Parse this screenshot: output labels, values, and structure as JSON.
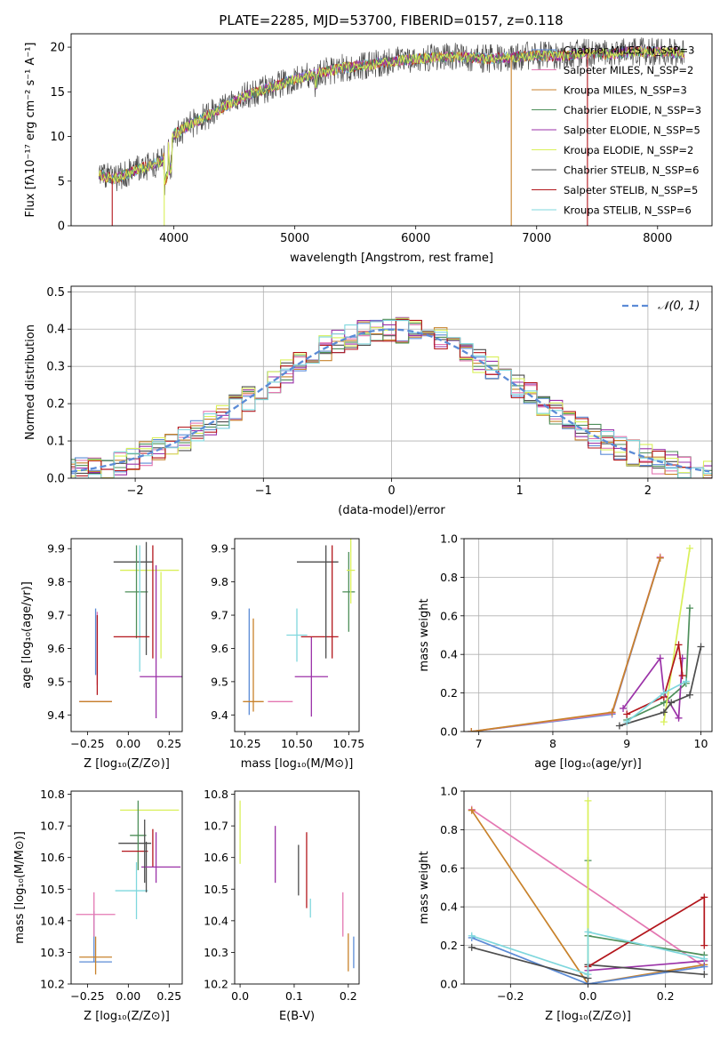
{
  "colors": {
    "grid": "#b0b0b0",
    "axis": "#000000",
    "gauss": "#5b8bd6"
  },
  "series_styles": [
    {
      "name": "Chabrier MILES",
      "nssp": "3",
      "color": "#5b8bd6"
    },
    {
      "name": "Salpeter MILES",
      "nssp": "2",
      "color": "#e477b2"
    },
    {
      "name": "Kroupa MILES",
      "nssp": "3",
      "color": "#c8822b"
    },
    {
      "name": "Chabrier ELODIE",
      "nssp": "3",
      "color": "#4e8f5a"
    },
    {
      "name": "Salpeter ELODIE",
      "nssp": "5",
      "color": "#9b32a8"
    },
    {
      "name": "Kroupa ELODIE",
      "nssp": "2",
      "color": "#d9f05a"
    },
    {
      "name": "Chabrier STELIB",
      "nssp": "6",
      "color": "#4d4d4d"
    },
    {
      "name": "Salpeter STELIB",
      "nssp": "5",
      "color": "#b3161c"
    },
    {
      "name": "Kroupa STELIB",
      "nssp": "6",
      "color": "#7fd7dd"
    }
  ],
  "chart_data": [
    {
      "id": "spectrum",
      "type": "line",
      "title": "PLATE=2285, MJD=53700, FIBERID=0157, z=0.118",
      "xlabel": "wavelength [Angstrom, rest frame]",
      "ylabel": "Flux [fλ10⁻¹⁷ erg cm⁻² s⁻¹ A⁻¹]",
      "xlim": [
        3150,
        8450
      ],
      "ylim": [
        0,
        21.5
      ],
      "xticks": [
        4000,
        5000,
        6000,
        7000,
        8000
      ],
      "yticks": [
        0,
        5,
        10,
        15,
        20
      ],
      "grid": false,
      "legend": "right",
      "legend_entries": [
        "Chabrier MILES, N_SSP=3",
        "Salpeter MILES, N_SSP=2",
        "Kroupa MILES, N_SSP=3",
        "Chabrier ELODIE, N_SSP=3",
        "Salpeter ELODIE, N_SSP=5",
        "Kroupa ELODIE, N_SSP=2",
        "Chabrier STELIB, N_SSP=6",
        "Salpeter STELIB, N_SSP=5",
        "Kroupa STELIB, N_SSP=6"
      ],
      "continuum": {
        "x": [
          3380,
          3500,
          3700,
          3900,
          4000,
          4200,
          4400,
          4600,
          4800,
          5000,
          5200,
          5400,
          5600,
          5800,
          6000,
          6200,
          6400,
          6600,
          6800,
          7000,
          7200,
          7400,
          7600,
          7800,
          8000,
          8220
        ],
        "y": [
          5.8,
          5.2,
          6.3,
          7.2,
          10.2,
          11.8,
          13.2,
          14.6,
          15.5,
          16.4,
          17.1,
          17.7,
          18.0,
          18.4,
          18.7,
          18.9,
          18.9,
          18.7,
          18.9,
          19.1,
          19.0,
          19.4,
          19.2,
          19.5,
          19.5,
          19.3
        ]
      }
    },
    {
      "id": "residuals",
      "type": "line",
      "xlabel": "(data-model)/error",
      "ylabel": "Normed distribution",
      "xlim": [
        -2.5,
        2.5
      ],
      "ylim": [
        0,
        0.515
      ],
      "xticks": [
        -2,
        -1,
        0,
        1,
        2
      ],
      "xtick_labels": [
        "−2",
        "−1",
        "0",
        "1",
        "2"
      ],
      "yticks": [
        0.0,
        0.1,
        0.2,
        0.3,
        0.4,
        0.5
      ],
      "grid": true,
      "legend": "top-right",
      "legend_label": "𝒩(0, 1)"
    },
    {
      "id": "age_vs_Z",
      "type": "scatter",
      "xlabel": "Z [log₁₀(Z/Z⊙)]",
      "ylabel": "age  [log₁₀(age/yr)]",
      "xlim": [
        -0.35,
        0.33
      ],
      "ylim": [
        9.35,
        9.93
      ],
      "xticks": [
        -0.25,
        0.0,
        0.25
      ],
      "xtick_labels": [
        "−0.25",
        "0.00",
        "0.25"
      ],
      "yticks": [
        9.4,
        9.5,
        9.6,
        9.7,
        9.8,
        9.9
      ],
      "grid": false,
      "points": [
        {
          "s": 0,
          "x": -0.2,
          "y": 9.44,
          "xerr": 0.1,
          "yerr": 0.0
        },
        {
          "s": 1,
          "x": -0.2,
          "y": 9.44,
          "xerr": 0.1,
          "yerr": 0.0
        },
        {
          "s": 2,
          "x": -0.2,
          "y": 9.44,
          "xerr": 0.1,
          "yerr": 0.0
        },
        {
          "s": 0,
          "x": -0.2,
          "y": 9.62,
          "xerr": 0.0,
          "yerr": 0.1
        },
        {
          "s": 1,
          "x": -0.19,
          "y": 9.6,
          "xerr": 0.0,
          "yerr": 0.11
        },
        {
          "s": 7,
          "x": -0.19,
          "y": 9.58,
          "xerr": 0.0,
          "yerr": 0.12
        },
        {
          "s": 6,
          "x": 0.03,
          "y": 9.86,
          "xerr": 0.12,
          "yerr": 0.0
        },
        {
          "s": 5,
          "x": 0.13,
          "y": 9.835,
          "xerr": 0.18,
          "yerr": 0.0
        },
        {
          "s": 3,
          "x": 0.05,
          "y": 9.77,
          "xerr": 0.07,
          "yerr": 0.14
        },
        {
          "s": 8,
          "x": 0.07,
          "y": 9.72,
          "xerr": 0.0,
          "yerr": 0.19
        },
        {
          "s": 6,
          "x": 0.11,
          "y": 9.75,
          "xerr": 0.0,
          "yerr": 0.17
        },
        {
          "s": 7,
          "x": 0.15,
          "y": 9.74,
          "xerr": 0.0,
          "yerr": 0.17
        },
        {
          "s": 4,
          "x": 0.17,
          "y": 9.62,
          "xerr": 0.0,
          "yerr": 0.23
        },
        {
          "s": 7,
          "x": 0.02,
          "y": 9.635,
          "xerr": 0.11,
          "yerr": 0.0
        },
        {
          "s": 4,
          "x": 0.2,
          "y": 9.515,
          "xerr": 0.13,
          "yerr": 0.0
        },
        {
          "s": 5,
          "x": 0.2,
          "y": 9.7,
          "xerr": 0.0,
          "yerr": 0.13
        }
      ]
    },
    {
      "id": "age_vs_mass",
      "type": "scatter",
      "xlabel": "mass [log₁₀(M/M⊙)]",
      "xlim": [
        10.2,
        10.8
      ],
      "ylim": [
        9.35,
        9.93
      ],
      "xticks": [
        10.25,
        10.5,
        10.75
      ],
      "xtick_labels": [
        "10.25",
        "10.50",
        "10.75"
      ],
      "yticks": [
        9.4,
        9.5,
        9.6,
        9.7,
        9.8,
        9.9
      ],
      "grid": false,
      "points": [
        {
          "s": 0,
          "x": 10.27,
          "y": 9.56,
          "xerr": 0.0,
          "yerr": 0.16
        },
        {
          "s": 2,
          "x": 10.29,
          "y": 9.55,
          "xerr": 0.0,
          "yerr": 0.14
        },
        {
          "s": 2,
          "x": 10.29,
          "y": 9.44,
          "xerr": 0.05,
          "yerr": 0.0
        },
        {
          "s": 1,
          "x": 10.42,
          "y": 9.44,
          "xerr": 0.06,
          "yerr": 0.0
        },
        {
          "s": 8,
          "x": 10.5,
          "y": 9.64,
          "xerr": 0.05,
          "yerr": 0.08
        },
        {
          "s": 6,
          "x": 10.6,
          "y": 9.86,
          "xerr": 0.1,
          "yerr": 0.0
        },
        {
          "s": 4,
          "x": 10.57,
          "y": 9.515,
          "xerr": 0.08,
          "yerr": 0.12
        },
        {
          "s": 7,
          "x": 10.61,
          "y": 9.635,
          "xerr": 0.09,
          "yerr": 0.0
        },
        {
          "s": 6,
          "x": 10.64,
          "y": 9.74,
          "xerr": 0.0,
          "yerr": 0.17
        },
        {
          "s": 7,
          "x": 10.67,
          "y": 9.74,
          "xerr": 0.0,
          "yerr": 0.17
        },
        {
          "s": 3,
          "x": 10.75,
          "y": 9.77,
          "xerr": 0.03,
          "yerr": 0.12
        },
        {
          "s": 5,
          "x": 10.76,
          "y": 9.835,
          "xerr": 0.02,
          "yerr": 0.1
        }
      ]
    },
    {
      "id": "mass_weight_vs_age",
      "type": "line",
      "xlabel": "age  [log₁₀(age/yr)]",
      "ylabel": "mass weight",
      "xlim": [
        6.8,
        10.15
      ],
      "ylim": [
        0,
        1.0
      ],
      "xticks": [
        7,
        8,
        9,
        10
      ],
      "yticks": [
        0.0,
        0.2,
        0.4,
        0.6,
        0.8,
        1.0
      ],
      "grid": true,
      "series": [
        {
          "s": 0,
          "x": [
            6.9,
            8.8,
            9.45
          ],
          "y": [
            0.0,
            0.09,
            0.9
          ]
        },
        {
          "s": 1,
          "x": [
            6.9,
            8.8,
            9.45
          ],
          "y": [
            0.0,
            0.095,
            0.905
          ]
        },
        {
          "s": 2,
          "x": [
            6.9,
            8.8,
            9.45
          ],
          "y": [
            0.0,
            0.1,
            0.9
          ]
        },
        {
          "s": 3,
          "x": [
            9.0,
            9.5,
            9.8,
            9.85
          ],
          "y": [
            0.06,
            0.15,
            0.25,
            0.64
          ]
        },
        {
          "s": 4,
          "x": [
            8.95,
            9.45,
            9.5,
            9.7,
            9.75
          ],
          "y": [
            0.12,
            0.38,
            0.2,
            0.07,
            0.38
          ]
        },
        {
          "s": 5,
          "x": [
            9.5,
            9.85
          ],
          "y": [
            0.05,
            0.95
          ]
        },
        {
          "s": 6,
          "x": [
            8.9,
            9.5,
            9.6,
            9.85,
            10.0
          ],
          "y": [
            0.03,
            0.1,
            0.15,
            0.19,
            0.44
          ]
        },
        {
          "s": 7,
          "x": [
            9.0,
            9.5,
            9.7,
            9.75
          ],
          "y": [
            0.09,
            0.18,
            0.45,
            0.29
          ]
        },
        {
          "s": 8,
          "x": [
            9.0,
            9.5,
            9.8
          ],
          "y": [
            0.05,
            0.2,
            0.26
          ]
        }
      ]
    },
    {
      "id": "mass_vs_Z",
      "type": "scatter",
      "xlabel": "Z [log₁₀(Z/Z⊙)]",
      "ylabel": "mass [log₁₀(M/M⊙)]",
      "xlim": [
        -0.35,
        0.33
      ],
      "ylim": [
        10.2,
        10.81
      ],
      "xticks": [
        -0.25,
        0.0,
        0.25
      ],
      "xtick_labels": [
        "−0.25",
        "0.00",
        "0.25"
      ],
      "yticks": [
        10.2,
        10.3,
        10.4,
        10.5,
        10.6,
        10.7,
        10.8
      ],
      "grid": false,
      "points": [
        {
          "s": 0,
          "x": -0.2,
          "y": 10.27,
          "xerr": 0.1,
          "yerr": 0.0
        },
        {
          "s": 0,
          "x": -0.21,
          "y": 10.35,
          "xerr": 0.0,
          "yerr": 0.08
        },
        {
          "s": 2,
          "x": -0.2,
          "y": 10.285,
          "xerr": 0.1,
          "yerr": 0.0
        },
        {
          "s": 2,
          "x": -0.2,
          "y": 10.29,
          "xerr": 0.0,
          "yerr": 0.06
        },
        {
          "s": 1,
          "x": -0.2,
          "y": 10.42,
          "xerr": 0.12,
          "yerr": 0.0
        },
        {
          "s": 1,
          "x": -0.21,
          "y": 10.42,
          "xerr": 0.0,
          "yerr": 0.07
        },
        {
          "s": 5,
          "x": 0.13,
          "y": 10.75,
          "xerr": 0.18,
          "yerr": 0.0
        },
        {
          "s": 6,
          "x": 0.04,
          "y": 10.645,
          "xerr": 0.1,
          "yerr": 0.0
        },
        {
          "s": 3,
          "x": 0.06,
          "y": 10.67,
          "xerr": 0.05,
          "yerr": 0.11
        },
        {
          "s": 7,
          "x": 0.04,
          "y": 10.62,
          "xerr": 0.08,
          "yerr": 0.0
        },
        {
          "s": 8,
          "x": 0.02,
          "y": 10.495,
          "xerr": 0.1,
          "yerr": 0.0
        },
        {
          "s": 8,
          "x": 0.05,
          "y": 10.495,
          "xerr": 0.0,
          "yerr": 0.09
        },
        {
          "s": 6,
          "x": 0.11,
          "y": 10.57,
          "xerr": 0.0,
          "yerr": 0.08
        },
        {
          "s": 7,
          "x": 0.15,
          "y": 10.63,
          "xerr": 0.0,
          "yerr": 0.06
        },
        {
          "s": 4,
          "x": 0.2,
          "y": 10.57,
          "xerr": 0.12,
          "yerr": 0.0
        },
        {
          "s": 4,
          "x": 0.17,
          "y": 10.6,
          "xerr": 0.0,
          "yerr": 0.08
        },
        {
          "s": 6,
          "x": 0.1,
          "y": 10.62,
          "xerr": 0.0,
          "yerr": 0.1
        }
      ]
    },
    {
      "id": "mass_vs_EBV",
      "type": "scatter",
      "xlabel": "E(B-V)",
      "xlim": [
        -0.01,
        0.22
      ],
      "ylim": [
        10.2,
        10.81
      ],
      "xticks": [
        0.0,
        0.1,
        0.2
      ],
      "xtick_labels": [
        "0.0",
        "0.1",
        "0.2"
      ],
      "yticks": [
        10.2,
        10.3,
        10.4,
        10.5,
        10.6,
        10.7,
        10.8
      ],
      "grid": false,
      "points": [
        {
          "s": 5,
          "x": 0.0,
          "y": 10.68,
          "xerr": 0.0,
          "yerr": 0.1
        },
        {
          "s": 4,
          "x": 0.065,
          "y": 10.61,
          "xerr": 0.0,
          "yerr": 0.09
        },
        {
          "s": 6,
          "x": 0.108,
          "y": 10.56,
          "xerr": 0.0,
          "yerr": 0.08
        },
        {
          "s": 7,
          "x": 0.123,
          "y": 10.56,
          "xerr": 0.0,
          "yerr": 0.12
        },
        {
          "s": 8,
          "x": 0.13,
          "y": 10.44,
          "xerr": 0.0,
          "yerr": 0.03
        },
        {
          "s": 1,
          "x": 0.19,
          "y": 10.42,
          "xerr": 0.0,
          "yerr": 0.07
        },
        {
          "s": 2,
          "x": 0.2,
          "y": 10.3,
          "xerr": 0.0,
          "yerr": 0.06
        },
        {
          "s": 0,
          "x": 0.21,
          "y": 10.3,
          "xerr": 0.0,
          "yerr": 0.05
        }
      ]
    },
    {
      "id": "mass_weight_vs_Z",
      "type": "line",
      "xlabel": "Z [log₁₀(Z/Z⊙)]",
      "ylabel": "mass weight",
      "xlim": [
        -0.32,
        0.32
      ],
      "ylim": [
        0,
        1.0
      ],
      "xticks": [
        -0.2,
        0.0,
        0.2
      ],
      "xtick_labels": [
        "−0.2",
        "0.0",
        "0.2"
      ],
      "yticks": [
        0.0,
        0.2,
        0.4,
        0.6,
        0.8,
        1.0
      ],
      "grid": true,
      "series": [
        {
          "s": 1,
          "x": [
            -0.3,
            0.3
          ],
          "y": [
            0.905,
            0.09
          ]
        },
        {
          "s": 2,
          "x": [
            -0.3,
            0.0,
            0.3
          ],
          "y": [
            0.9,
            0.0,
            0.1
          ]
        },
        {
          "s": 0,
          "x": [
            -0.3,
            0.0,
            0.3
          ],
          "y": [
            0.24,
            0.0,
            0.09
          ]
        },
        {
          "s": 3,
          "x": [
            0.0,
            0.0,
            0.3
          ],
          "y": [
            0.64,
            0.25,
            0.15
          ]
        },
        {
          "s": 4,
          "x": [
            0.0,
            0.3
          ],
          "y": [
            0.07,
            0.12
          ]
        },
        {
          "s": 5,
          "x": [
            0.0,
            0.0
          ],
          "y": [
            0.05,
            0.95
          ]
        },
        {
          "s": 6,
          "x": [
            -0.3,
            0.0,
            0.0,
            0.3
          ],
          "y": [
            0.19,
            0.03,
            0.1,
            0.05
          ]
        },
        {
          "s": 7,
          "x": [
            0.0,
            0.3,
            0.3
          ],
          "y": [
            0.09,
            0.45,
            0.2
          ]
        },
        {
          "s": 8,
          "x": [
            -0.3,
            0.0,
            0.0,
            0.3
          ],
          "y": [
            0.25,
            0.05,
            0.27,
            0.13
          ]
        }
      ]
    }
  ]
}
